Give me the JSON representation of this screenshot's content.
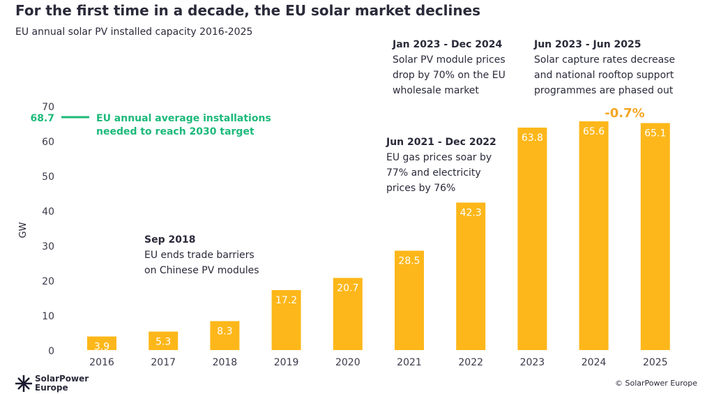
{
  "chart_data": {
    "type": "bar",
    "title": "For the first time in a decade, the EU solar market declines",
    "subtitle": "EU annual solar PV installed capacity 2016-2025",
    "ylabel": "GW",
    "ylim": [
      0,
      70
    ],
    "yticks": [
      0,
      10,
      20,
      30,
      40,
      50,
      60,
      70
    ],
    "categories": [
      "2016",
      "2017",
      "2018",
      "2019",
      "2020",
      "2021",
      "2022",
      "2023",
      "2024",
      "2025"
    ],
    "values": [
      3.9,
      5.3,
      8.3,
      17.2,
      20.7,
      28.5,
      42.3,
      63.8,
      65.6,
      65.1
    ],
    "bar_color": "#FDB71A",
    "target": {
      "value": 68.7,
      "label_value": "68.7",
      "lines": [
        "EU annual average installations",
        "needed to reach 2030 target"
      ],
      "color": "#1DB97A"
    },
    "change_label": {
      "text": "-0.7%",
      "color": "#F5A623"
    },
    "annotations": [
      {
        "title": "Sep 2018",
        "lines": [
          "EU ends trade barriers",
          "on Chinese PV modules"
        ]
      },
      {
        "title": "Jun 2021 - Dec 2022",
        "lines": [
          "EU gas prices soar by",
          "77% and electricity",
          "prices by 76%"
        ]
      },
      {
        "title": "Jan 2023 - Dec 2024",
        "lines": [
          "Solar PV module prices",
          "drop by 70% on the EU",
          "wholesale market"
        ]
      },
      {
        "title": "Jun 2023 - Jun 2025",
        "lines": [
          "Solar capture rates decrease",
          "and national rooftop support",
          "programmes are phased out"
        ]
      }
    ],
    "grid": false,
    "legend": "none"
  },
  "footer": {
    "logo_lines": [
      "SolarPower",
      "Europe"
    ],
    "copyright": "© SolarPower Europe"
  }
}
